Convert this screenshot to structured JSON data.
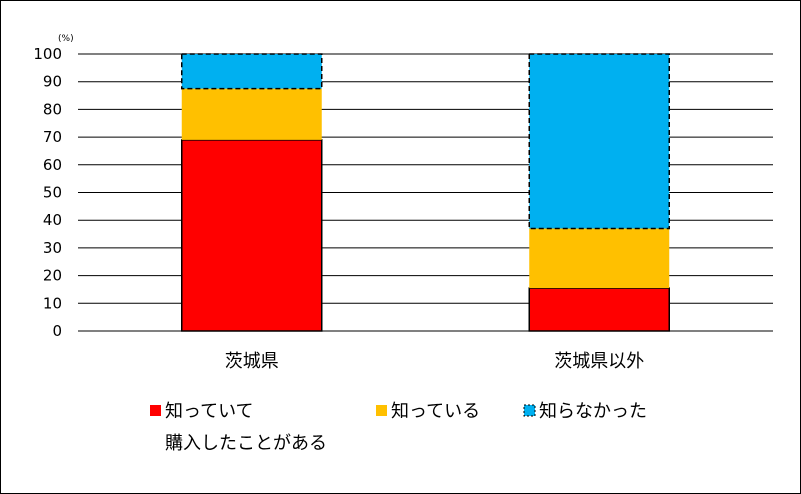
{
  "chart_data": {
    "type": "bar",
    "stacked": true,
    "categories": [
      "茨城県",
      "茨城県以外"
    ],
    "series": [
      {
        "name": "知っていて購入したことがある",
        "values": [
          69,
          15.5
        ],
        "color": "#ff0000",
        "dashed": false
      },
      {
        "name": "知っている",
        "values": [
          18.5,
          21.5
        ],
        "color": "#ffc000",
        "dashed": false
      },
      {
        "name": "知らなかった",
        "values": [
          12.5,
          63
        ],
        "color": "#00b0f0",
        "dashed": true
      }
    ],
    "y_unit": "(%)",
    "ylim": [
      0,
      100
    ],
    "yticks": [
      "0",
      "10",
      "20",
      "30",
      "40",
      "50",
      "60",
      "70",
      "80",
      "90",
      "100"
    ],
    "grid": true,
    "legend_position": "bottom",
    "legend": {
      "label_1_line1": "知っていて",
      "label_1_line2": "購入したことがある",
      "label_2": "知っている",
      "label_3": "知らなかった"
    }
  }
}
